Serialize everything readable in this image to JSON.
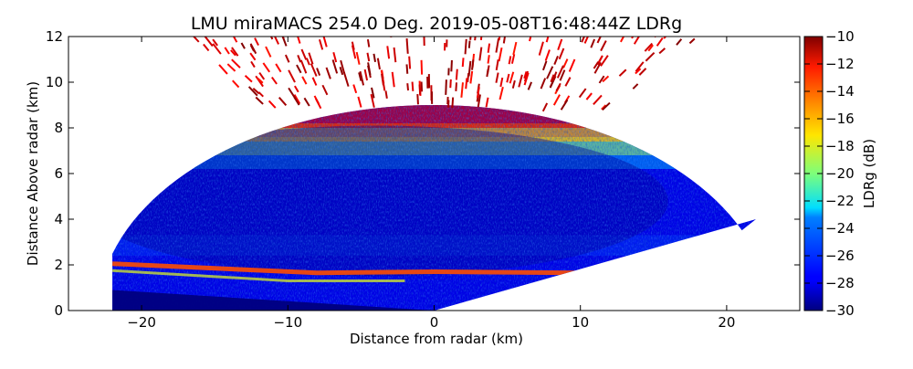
{
  "chart_data": {
    "type": "heatmap",
    "title": "LMU miraMACS 254.0 Deg. 2019-05-08T16:48:44Z  LDRg",
    "xlabel": "Distance from radar (km)",
    "ylabel": "Distance Above radar  (km)",
    "xlim": [
      -25,
      25
    ],
    "ylim": [
      0,
      12
    ],
    "x_ticks": [
      -20,
      -10,
      0,
      10,
      20
    ],
    "x_tick_labels": [
      "−20",
      "−10",
      "0",
      "10",
      "20"
    ],
    "y_ticks": [
      0,
      2,
      4,
      6,
      8,
      10,
      12
    ],
    "y_tick_labels": [
      "0",
      "2",
      "4",
      "6",
      "8",
      "10",
      "12"
    ],
    "colorbar": {
      "label": "LDRg (dB)",
      "min": -30,
      "max": -10,
      "ticks": [
        -30,
        -28,
        -26,
        -24,
        -22,
        -20,
        -18,
        -16,
        -14,
        -12,
        -10
      ],
      "tick_labels": [
        "−30",
        "−28",
        "−26",
        "−24",
        "−22",
        "−20",
        "−18",
        "−16",
        "−14",
        "−12",
        "−10"
      ],
      "colormap": "jet"
    },
    "scan": {
      "type": "RHI",
      "azimuth_deg": 254.0,
      "timestamp": "2019-05-08T16:48:44Z",
      "left_edge_x_km": -22,
      "right_edge_end": [
        22,
        4
      ],
      "max_range_km": 23
    },
    "layers": [
      {
        "name": "surface clutter",
        "y_top_km": 0.6,
        "ldr_db": -30
      },
      {
        "name": "melting layer (bright band)",
        "y_km": 1.9,
        "ldr_db": -14
      },
      {
        "name": "stratiform ice cloud core",
        "y_range_km": [
          2.5,
          6.5
        ],
        "ldr_db": -28
      },
      {
        "name": "cloud top",
        "y_range_km": [
          6.5,
          9.0
        ],
        "ldr_db": -12
      },
      {
        "name": "noise speckle above cloud",
        "y_range_km": [
          9.0,
          12.0
        ],
        "ldr_db": -10
      }
    ]
  }
}
